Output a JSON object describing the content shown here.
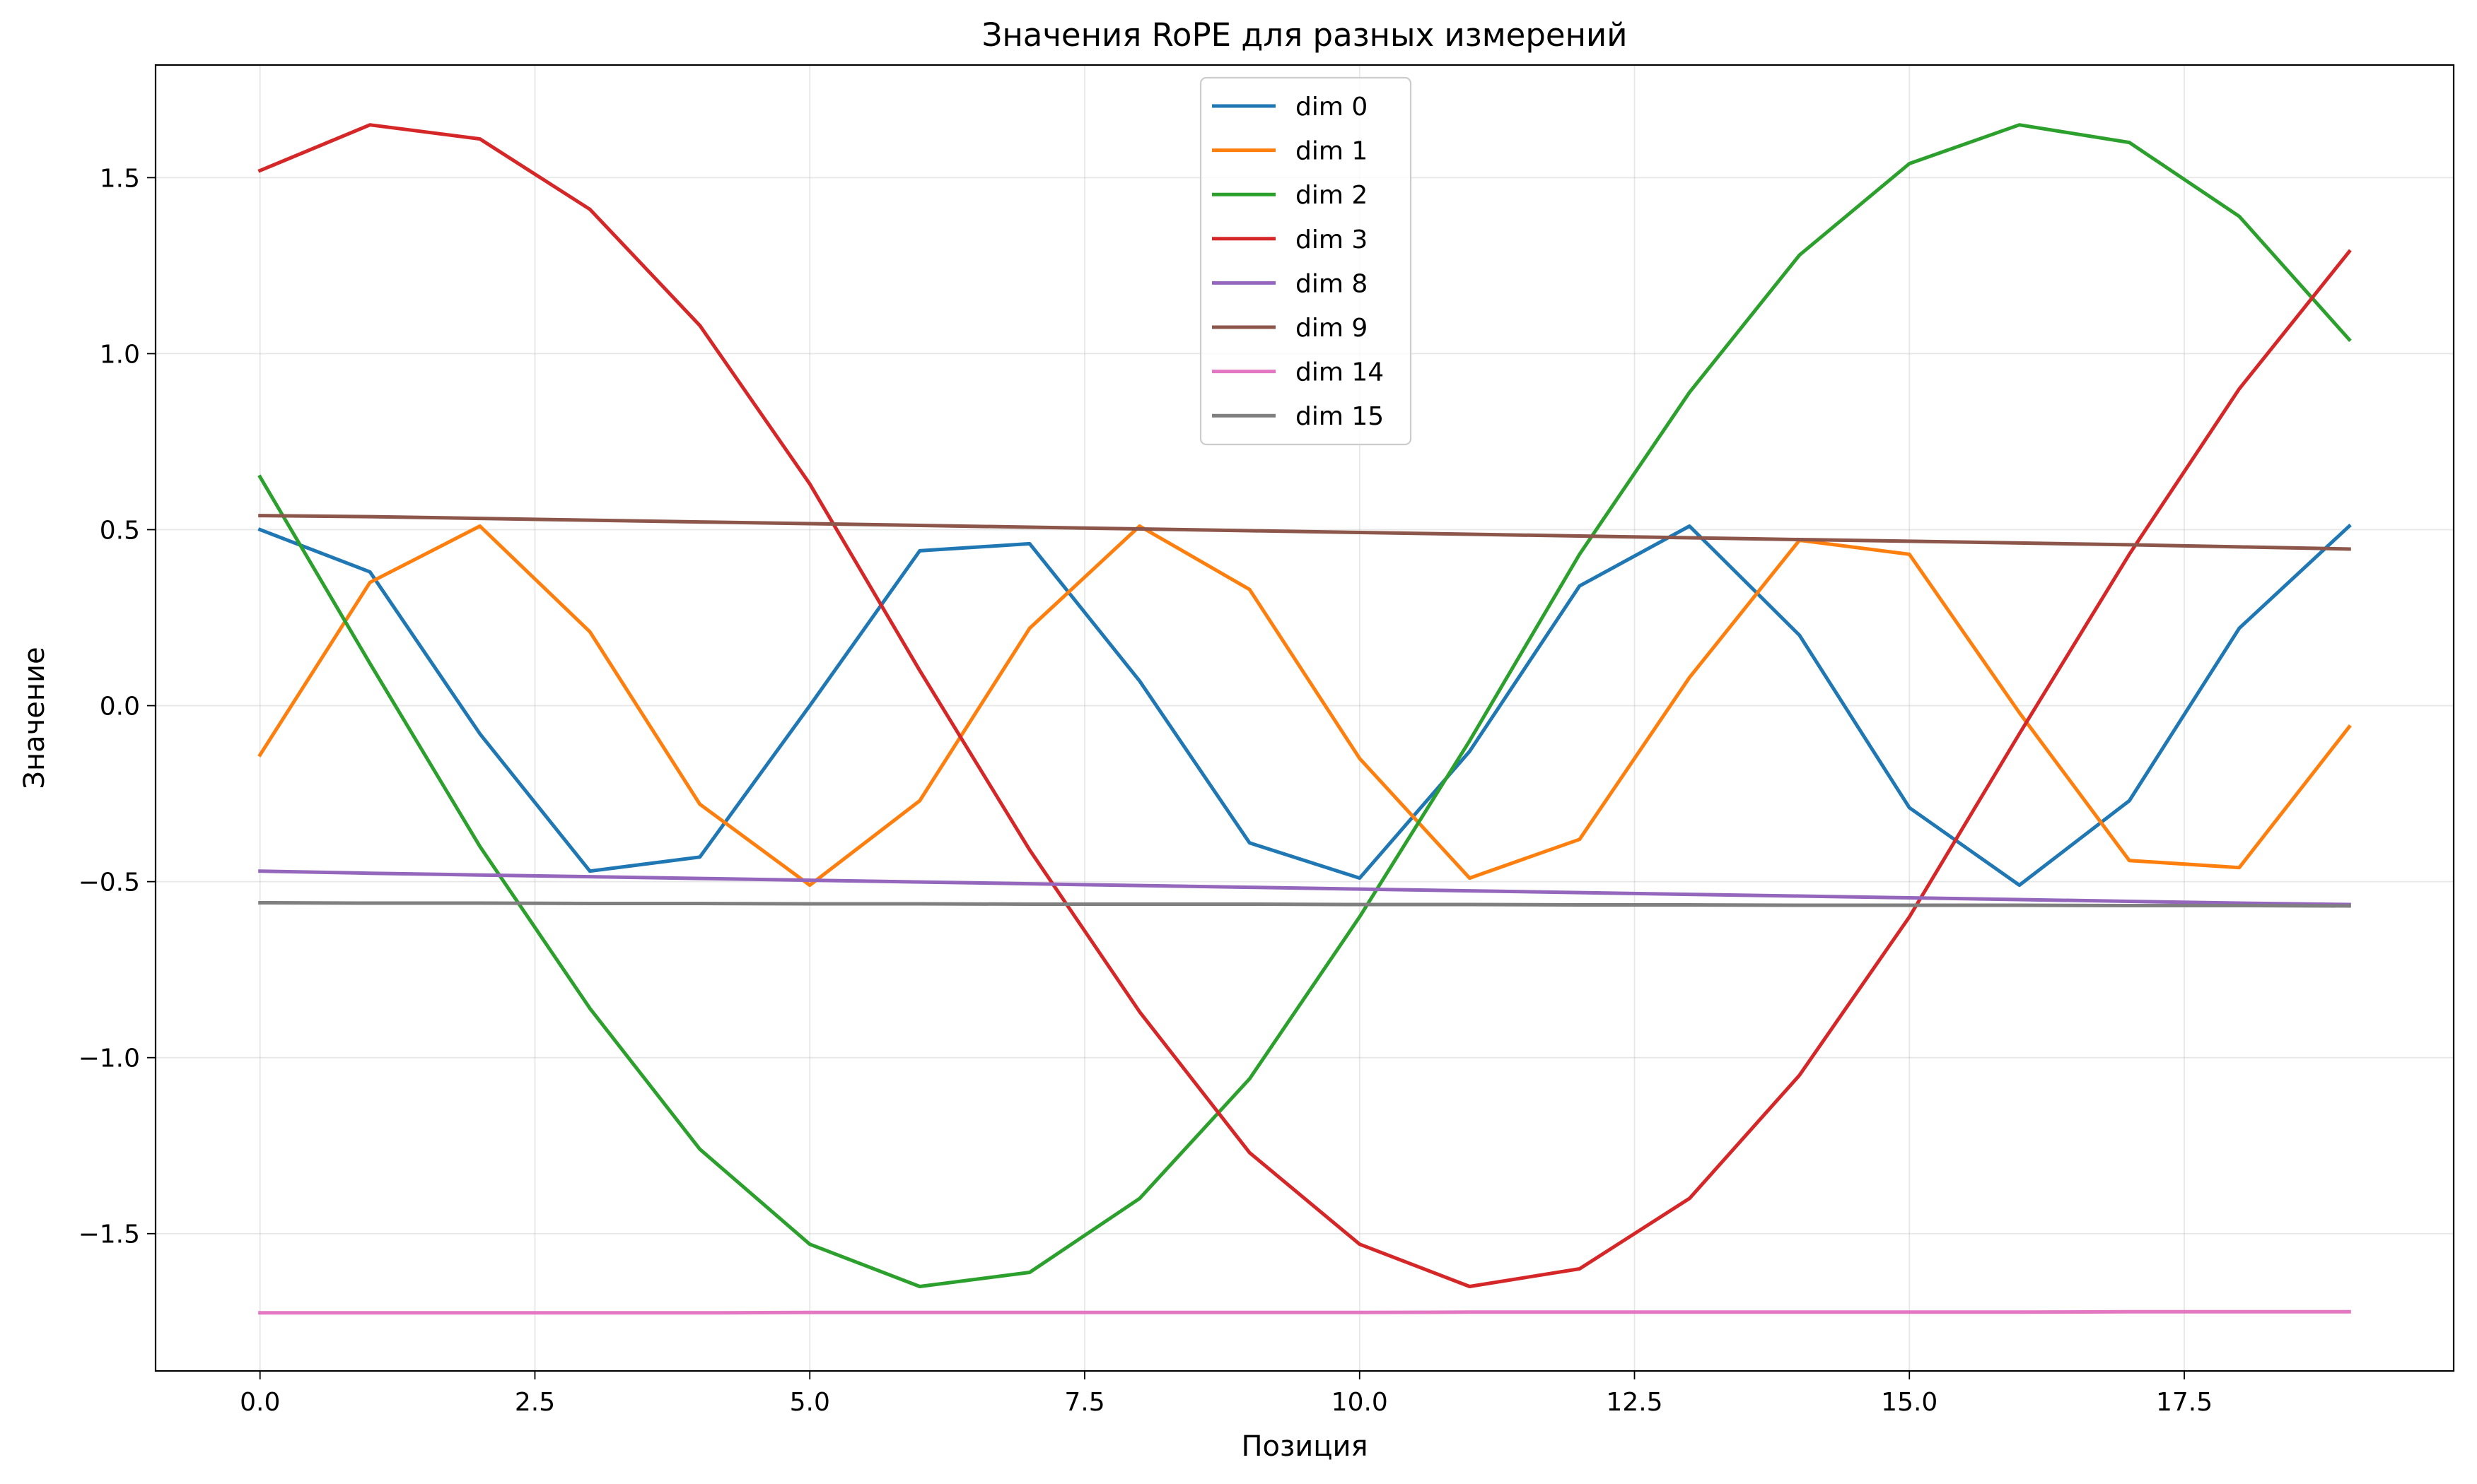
{
  "chart_data": {
    "type": "line",
    "title": "Значения RoPE для разных измерений",
    "xlabel": "Позиция",
    "ylabel": "Значение",
    "xlim": [
      -0.95,
      19.95
    ],
    "ylim": [
      -1.89,
      1.82
    ],
    "xticks": [
      0.0,
      2.5,
      5.0,
      7.5,
      10.0,
      12.5,
      15.0,
      17.5
    ],
    "xtick_labels": [
      "0.0",
      "2.5",
      "5.0",
      "7.5",
      "10.0",
      "12.5",
      "15.0",
      "17.5"
    ],
    "yticks": [
      -1.5,
      -1.0,
      -0.5,
      0.0,
      0.5,
      1.0,
      1.5
    ],
    "ytick_labels": [
      "−1.5",
      "−1.0",
      "−0.5",
      "0.0",
      "0.5",
      "1.0",
      "1.5"
    ],
    "grid": true,
    "legend_position": "upper center",
    "x": [
      0,
      1,
      2,
      3,
      4,
      5,
      6,
      7,
      8,
      9,
      10,
      11,
      12,
      13,
      14,
      15,
      16,
      17,
      18,
      19
    ],
    "series": [
      {
        "name": "dim 0",
        "color": "#1f77b4",
        "values": [
          0.5,
          0.38,
          -0.08,
          -0.47,
          -0.43,
          0.0,
          0.44,
          0.46,
          0.07,
          -0.39,
          -0.49,
          -0.13,
          0.34,
          0.51,
          0.2,
          -0.29,
          -0.51,
          -0.27,
          0.22,
          0.51
        ]
      },
      {
        "name": "dim 1",
        "color": "#ff7f0e",
        "values": [
          -0.14,
          0.35,
          0.51,
          0.21,
          -0.28,
          -0.51,
          -0.27,
          0.22,
          0.51,
          0.33,
          -0.15,
          -0.49,
          -0.38,
          0.08,
          0.47,
          0.43,
          -0.02,
          -0.44,
          -0.46,
          -0.06
        ]
      },
      {
        "name": "dim 2",
        "color": "#2ca02c",
        "values": [
          0.65,
          0.12,
          -0.4,
          -0.86,
          -1.26,
          -1.53,
          -1.65,
          -1.61,
          -1.4,
          -1.06,
          -0.6,
          -0.1,
          0.43,
          0.89,
          1.28,
          1.54,
          1.65,
          1.6,
          1.39,
          1.04
        ]
      },
      {
        "name": "dim 3",
        "color": "#d62728",
        "values": [
          1.52,
          1.65,
          1.61,
          1.41,
          1.08,
          0.63,
          0.1,
          -0.41,
          -0.87,
          -1.27,
          -1.53,
          -1.65,
          -1.6,
          -1.4,
          -1.05,
          -0.6,
          -0.08,
          0.43,
          0.9,
          1.29
        ]
      },
      {
        "name": "dim 8",
        "color": "#9467bd",
        "values": [
          -0.47,
          -0.476,
          -0.481,
          -0.486,
          -0.491,
          -0.496,
          -0.501,
          -0.506,
          -0.511,
          -0.516,
          -0.521,
          -0.526,
          -0.531,
          -0.536,
          -0.541,
          -0.546,
          -0.551,
          -0.556,
          -0.561,
          -0.565
        ]
      },
      {
        "name": "dim 9",
        "color": "#8c564b",
        "values": [
          0.54,
          0.537,
          0.532,
          0.527,
          0.522,
          0.517,
          0.512,
          0.507,
          0.502,
          0.497,
          0.492,
          0.487,
          0.482,
          0.477,
          0.472,
          0.467,
          0.462,
          0.457,
          0.451,
          0.445
        ]
      },
      {
        "name": "dim 14",
        "color": "#e377c2",
        "values": [
          -1.725,
          -1.725,
          -1.725,
          -1.725,
          -1.725,
          -1.724,
          -1.724,
          -1.724,
          -1.724,
          -1.724,
          -1.724,
          -1.723,
          -1.723,
          -1.723,
          -1.723,
          -1.723,
          -1.723,
          -1.722,
          -1.722,
          -1.722
        ]
      },
      {
        "name": "dim 15",
        "color": "#7f7f7f",
        "values": [
          -0.56,
          -0.561,
          -0.561,
          -0.562,
          -0.562,
          -0.563,
          -0.563,
          -0.564,
          -0.564,
          -0.564,
          -0.565,
          -0.565,
          -0.566,
          -0.566,
          -0.567,
          -0.567,
          -0.567,
          -0.568,
          -0.568,
          -0.569
        ]
      }
    ]
  }
}
